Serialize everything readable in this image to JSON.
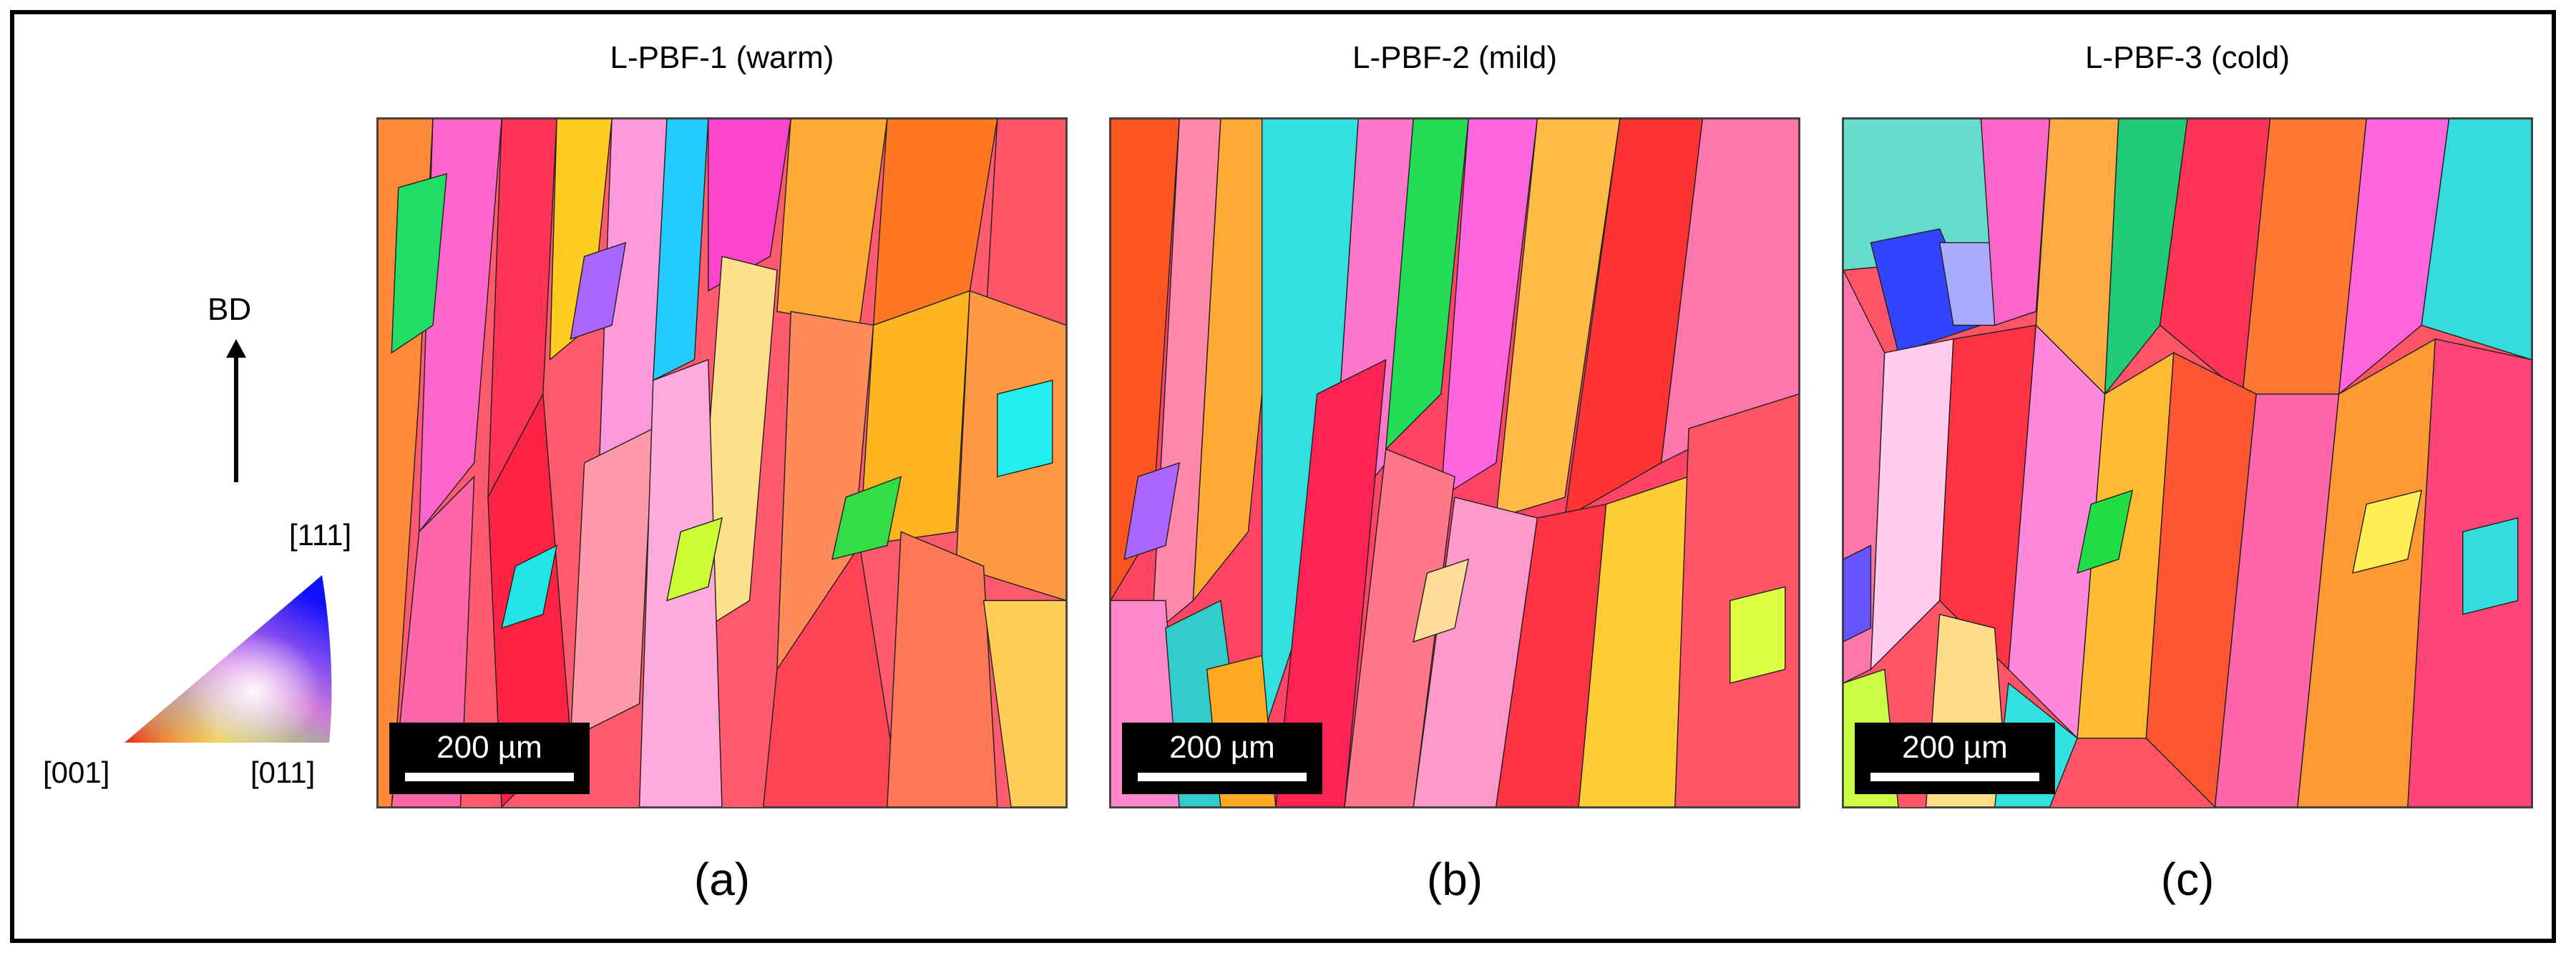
{
  "legend": {
    "bd_label": "BD",
    "ipf_111": "[111]",
    "ipf_001": "[001]",
    "ipf_011": "[011]"
  },
  "panels": [
    {
      "title": "L-PBF-1 (warm)",
      "scale": "200 µm",
      "label": "(a)"
    },
    {
      "title": "L-PBF-2 (mild)",
      "scale": "200 µm",
      "label": "(b)"
    },
    {
      "title": "L-PBF-3 (cold)",
      "scale": "200 µm",
      "label": "(c)"
    }
  ],
  "colors": {
    "ipf_001": "#ff1a1a",
    "ipf_011": "#22dd22",
    "ipf_111": "#1a1aff"
  }
}
